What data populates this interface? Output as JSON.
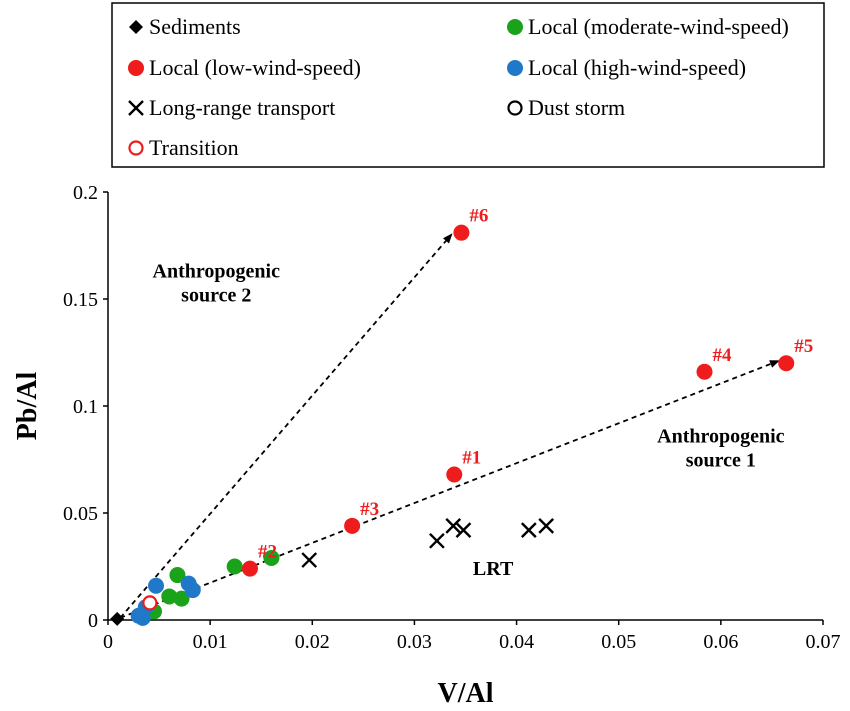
{
  "chart_data": {
    "type": "scatter",
    "xlabel": "V/Al",
    "ylabel": "Pb/Al",
    "xlim": [
      0,
      0.07
    ],
    "ylim": [
      0,
      0.2
    ],
    "x_ticks": [
      "0",
      "0.01",
      "0.02",
      "0.03",
      "0.04",
      "0.05",
      "0.06",
      "0.07"
    ],
    "y_ticks": [
      "0",
      "0.05",
      "0.1",
      "0.15",
      "0.2"
    ],
    "grid": false,
    "legend_position": "top",
    "series": [
      {
        "name": "Sediments",
        "marker": "diamond",
        "color": "#000000",
        "points": [
          {
            "x": 0.0009,
            "y": 0.0005
          }
        ]
      },
      {
        "name": "Local (moderate-wind-speed)",
        "marker": "circle",
        "color": "#1aa31a",
        "points": [
          {
            "x": 0.0045,
            "y": 0.004
          },
          {
            "x": 0.006,
            "y": 0.011
          },
          {
            "x": 0.0068,
            "y": 0.021
          },
          {
            "x": 0.0072,
            "y": 0.01
          },
          {
            "x": 0.0124,
            "y": 0.025
          },
          {
            "x": 0.016,
            "y": 0.029
          }
        ]
      },
      {
        "name": "Local (low-wind-speed)",
        "marker": "circle",
        "color": "#ee1c1c",
        "points": [
          {
            "x": 0.0139,
            "y": 0.024,
            "label": "#2"
          },
          {
            "x": 0.0239,
            "y": 0.044,
            "label": "#3"
          },
          {
            "x": 0.0339,
            "y": 0.068,
            "label": "#1"
          },
          {
            "x": 0.0584,
            "y": 0.116,
            "label": "#4"
          },
          {
            "x": 0.0664,
            "y": 0.12,
            "label": "#5"
          },
          {
            "x": 0.0346,
            "y": 0.181,
            "label": "#6"
          }
        ]
      },
      {
        "name": "Local (high-wind-speed)",
        "marker": "circle",
        "color": "#1f78c8",
        "points": [
          {
            "x": 0.003,
            "y": 0.002
          },
          {
            "x": 0.0034,
            "y": 0.001
          },
          {
            "x": 0.0037,
            "y": 0.006
          },
          {
            "x": 0.0047,
            "y": 0.016
          },
          {
            "x": 0.0079,
            "y": 0.017
          },
          {
            "x": 0.0083,
            "y": 0.014
          }
        ]
      },
      {
        "name": "Long-range transport",
        "marker": "x",
        "color": "#000000",
        "points": [
          {
            "x": 0.0197,
            "y": 0.028
          },
          {
            "x": 0.0322,
            "y": 0.037
          },
          {
            "x": 0.0338,
            "y": 0.044
          },
          {
            "x": 0.0348,
            "y": 0.042
          },
          {
            "x": 0.0412,
            "y": 0.042
          },
          {
            "x": 0.0429,
            "y": 0.044
          }
        ]
      },
      {
        "name": "Dust storm",
        "marker": "open-circle",
        "color": "#000000",
        "points": []
      },
      {
        "name": "Transition",
        "marker": "open-circle",
        "color": "#ee1c1c",
        "points": [
          {
            "x": 0.0041,
            "y": 0.008
          }
        ]
      }
    ],
    "arrows": [
      {
        "from": {
          "x": 0.0012,
          "y": 0.001
        },
        "to": {
          "x": 0.0336,
          "y": 0.18
        }
      },
      {
        "from": {
          "x": 0.0012,
          "y": 0.001
        },
        "to": {
          "x": 0.0656,
          "y": 0.121
        }
      }
    ],
    "annotations": [
      {
        "text_lines": [
          "Anthropogenic",
          "source 2"
        ],
        "x": 0.0106,
        "y": 0.16
      },
      {
        "text_lines": [
          "Anthropogenic",
          "source 1"
        ],
        "x": 0.06,
        "y": 0.083
      },
      {
        "text_lines": [
          "LRT"
        ],
        "x": 0.0377,
        "y": 0.021
      }
    ]
  }
}
